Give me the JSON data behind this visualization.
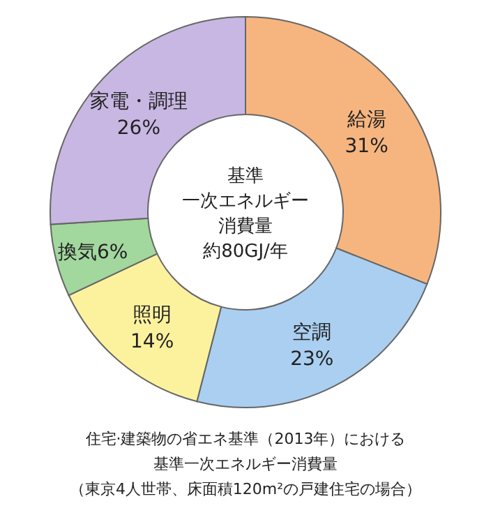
{
  "chart_data": {
    "type": "donut",
    "categories": [
      "給湯",
      "空調",
      "照明",
      "換気",
      "家電・調理"
    ],
    "values": [
      31,
      23,
      14,
      6,
      26
    ],
    "value_labels": [
      "31%",
      "23%",
      "14%",
      "6%",
      "26%"
    ],
    "colors": [
      "#f6b57f",
      "#aacff1",
      "#fcf29e",
      "#a2d79e",
      "#c8b7e3"
    ],
    "annotations": [
      "基準",
      "一次エネルギー",
      "消費量",
      "約80GJ/年",
      "住宅·建築物の省エネ基準（2013年）における",
      "基準一次エネルギー消費量",
      "（東京4人世帯、床面積120m²の戸建住宅の場合）"
    ]
  }
}
